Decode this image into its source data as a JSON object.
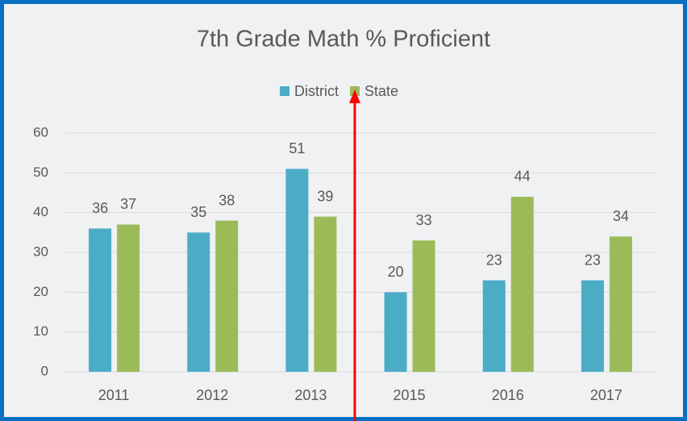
{
  "chart_data": {
    "type": "bar",
    "title": "7th Grade Math % Proficient",
    "categories": [
      "2011",
      "2012",
      "2013",
      "2015",
      "2016",
      "2017"
    ],
    "series": [
      {
        "name": "District",
        "color": "#4bacc6",
        "values": [
          36,
          35,
          51,
          20,
          23,
          23
        ]
      },
      {
        "name": "State",
        "color": "#9bbb59",
        "values": [
          37,
          38,
          39,
          33,
          44,
          34
        ]
      }
    ],
    "ylim": [
      0,
      60
    ],
    "yticks": [
      0,
      10,
      20,
      30,
      40,
      50,
      60
    ],
    "grid": true,
    "legend": "top"
  }
}
